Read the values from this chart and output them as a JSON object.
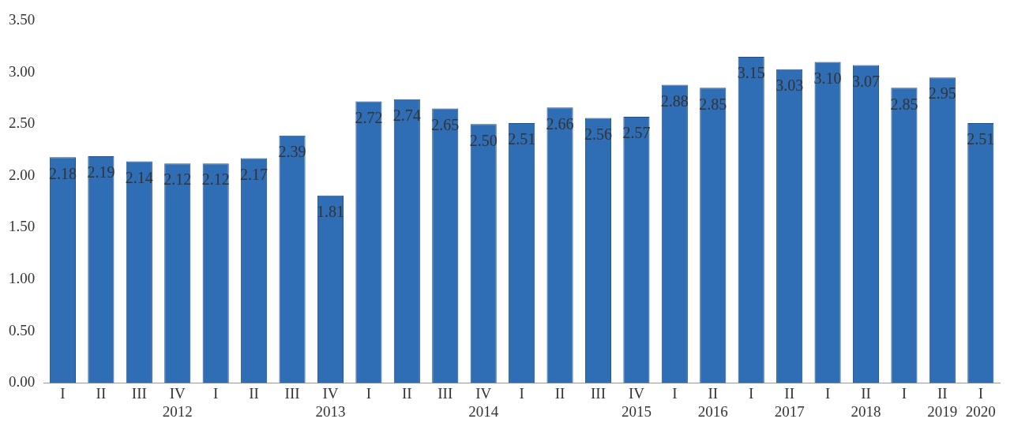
{
  "chart_data": {
    "type": "bar",
    "categories": [
      "I",
      "II",
      "III",
      "IV\n2012",
      "I",
      "II",
      "III",
      "IV\n2013",
      "I",
      "II",
      "III",
      "IV\n2014",
      "I",
      "II",
      "III",
      "IV\n2015",
      "I",
      "II\n2016",
      "I",
      "II\n2017",
      "I",
      "II\n2018",
      "I",
      "II\n2019",
      "I\n2020"
    ],
    "values": [
      2.18,
      2.19,
      2.14,
      2.12,
      2.12,
      2.17,
      2.39,
      1.81,
      2.72,
      2.74,
      2.65,
      2.5,
      2.51,
      2.66,
      2.56,
      2.57,
      2.88,
      2.85,
      3.15,
      3.03,
      3.1,
      3.07,
      2.85,
      2.95,
      2.51
    ],
    "value_labels": [
      "2.18",
      "2.19",
      "2.14",
      "2.12",
      "2.12",
      "2.17",
      "2.39",
      "1.81",
      "2.72",
      "2.74",
      "2.65",
      "2.50",
      "2.51",
      "2.66",
      "2.56",
      "2.57",
      "2.88",
      "2.85",
      "3.15",
      "3.03",
      "3.10",
      "3.07",
      "2.85",
      "2.95",
      "2.51"
    ],
    "color": "#2f6db5",
    "ylim": [
      0,
      3.5
    ],
    "yticks": [
      {
        "value": 0,
        "label": "0.00"
      },
      {
        "value": 0.5,
        "label": "0.50"
      },
      {
        "value": 1,
        "label": "1.00"
      },
      {
        "value": 1.5,
        "label": "1.50"
      },
      {
        "value": 2,
        "label": "2.00"
      },
      {
        "value": 2.5,
        "label": "2.50"
      },
      {
        "value": 3,
        "label": "3.00"
      },
      {
        "value": 3.5,
        "label": "3.50"
      }
    ],
    "grid": false,
    "legend": false
  }
}
